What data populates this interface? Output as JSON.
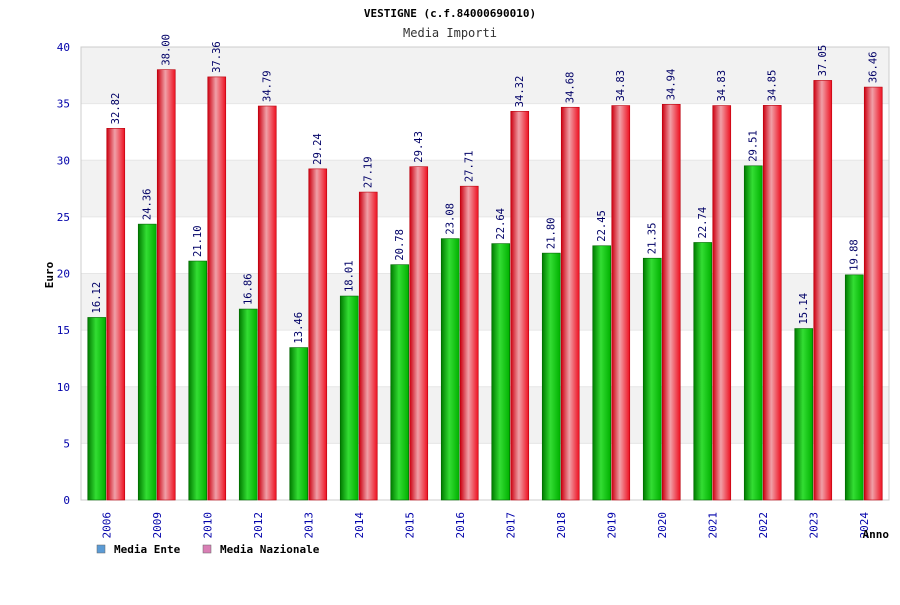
{
  "chart_data": {
    "type": "bar",
    "title": "VESTIGNE (c.f.84000690010)",
    "subtitle": "Media Importi",
    "xlabel": "Anno",
    "ylabel": "Euro",
    "ylim": [
      0,
      40
    ],
    "yticks": [
      "0",
      "5",
      "10",
      "15",
      "20",
      "25",
      "30",
      "35",
      "40"
    ],
    "grid": true,
    "legend_position": "bottom-left",
    "categories": [
      "2006",
      "2009",
      "2010",
      "2012",
      "2013",
      "2014",
      "2015",
      "2016",
      "2017",
      "2018",
      "2019",
      "2020",
      "2021",
      "2022",
      "2023",
      "2024"
    ],
    "series": [
      {
        "name": "Media Ente",
        "color": "#00aa00",
        "legend_color": "#5b9bd5",
        "values": [
          16.12,
          24.36,
          21.1,
          16.86,
          13.46,
          18.01,
          20.78,
          23.08,
          22.64,
          21.8,
          22.45,
          21.35,
          22.74,
          29.51,
          15.14,
          19.88
        ],
        "labels": [
          "16.12",
          "24.36",
          "21.10",
          "16.86",
          "13.46",
          "18.01",
          "20.78",
          "23.08",
          "22.64",
          "21.80",
          "22.45",
          "21.35",
          "22.74",
          "29.51",
          "15.14",
          "19.88"
        ]
      },
      {
        "name": "Media Nazionale",
        "color": "#e8000f",
        "legend_color": "#d97fb5",
        "values": [
          32.82,
          38.0,
          37.36,
          34.79,
          29.24,
          27.19,
          29.43,
          27.71,
          34.32,
          34.68,
          34.83,
          34.94,
          34.83,
          34.85,
          37.05,
          36.46
        ],
        "labels": [
          "32.82",
          "38.00",
          "37.36",
          "34.79",
          "29.24",
          "27.19",
          "29.43",
          "27.71",
          "34.32",
          "34.68",
          "34.83",
          "34.94",
          "34.83",
          "34.85",
          "37.05",
          "36.46"
        ]
      }
    ],
    "colors": {
      "band_light": "#f2f2f2",
      "band_white": "#ffffff",
      "axis_text": "#0000aa",
      "title_text": "#000000",
      "subtitle_text": "#333333",
      "value_label": "#000066"
    }
  }
}
